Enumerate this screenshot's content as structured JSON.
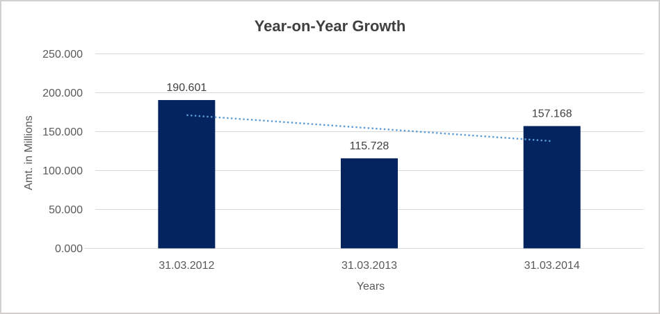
{
  "chart_data": {
    "type": "bar",
    "title": "Year-on-Year Growth",
    "xlabel": "Years",
    "ylabel": "Amt. in Millions",
    "categories": [
      "31.03.2012",
      "31.03.2013",
      "31.03.2014"
    ],
    "values": [
      190.601,
      115.728,
      157.168
    ],
    "value_labels": [
      "190.601",
      "115.728",
      "157.168"
    ],
    "ylim": [
      0,
      250
    ],
    "ytick_step": 50,
    "ytick_labels": [
      "0.000",
      "50.000",
      "100.000",
      "150.000",
      "200.000",
      "250.000"
    ],
    "grid": true,
    "legend": "none",
    "trendline": {
      "type": "linear",
      "style": "dotted"
    },
    "colors": {
      "bar": "#04245f",
      "trendline": "#5b9bd5",
      "gridline": "#d9d9d9",
      "title_text": "#404040",
      "axis_text": "#595959",
      "data_label_text": "#404040",
      "border": "#d2cfcf",
      "background": "#ffffff"
    }
  }
}
